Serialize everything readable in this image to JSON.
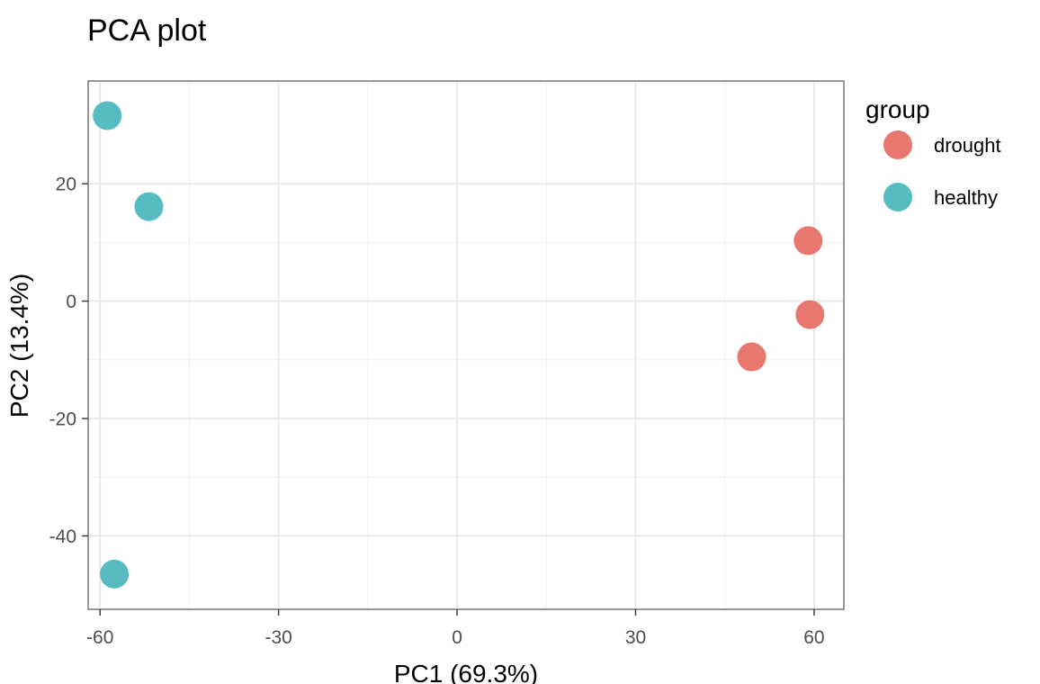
{
  "chart_data": {
    "type": "scatter",
    "title": "PCA plot",
    "xlabel": "PC1 (69.3%)",
    "ylabel": "PC2 (13.4%)",
    "xlim": [
      -62,
      65
    ],
    "ylim": [
      -52.5,
      37.5
    ],
    "x_ticks": [
      -60,
      -30,
      0,
      30,
      60
    ],
    "y_ticks": [
      20,
      0,
      -20,
      -40
    ],
    "x_tick_labels": [
      "-60",
      "-30",
      "0",
      "30",
      "60"
    ],
    "y_tick_labels": [
      "20",
      "0",
      "-20",
      "-40"
    ],
    "grid": true,
    "legend": {
      "title": "group",
      "position": "right",
      "entries": [
        {
          "label": "drought",
          "color": "#E8776F"
        },
        {
          "label": "healthy",
          "color": "#56BCC2"
        }
      ]
    },
    "series": [
      {
        "name": "drought",
        "color": "#E8776F",
        "points": [
          {
            "x": 59.0,
            "y": 10.3
          },
          {
            "x": 59.3,
            "y": -2.3
          },
          {
            "x": 49.5,
            "y": -9.5
          }
        ]
      },
      {
        "name": "healthy",
        "color": "#56BCC2",
        "points": [
          {
            "x": -58.8,
            "y": 31.6
          },
          {
            "x": -51.8,
            "y": 16.1
          },
          {
            "x": -57.6,
            "y": -46.5
          }
        ]
      }
    ]
  }
}
